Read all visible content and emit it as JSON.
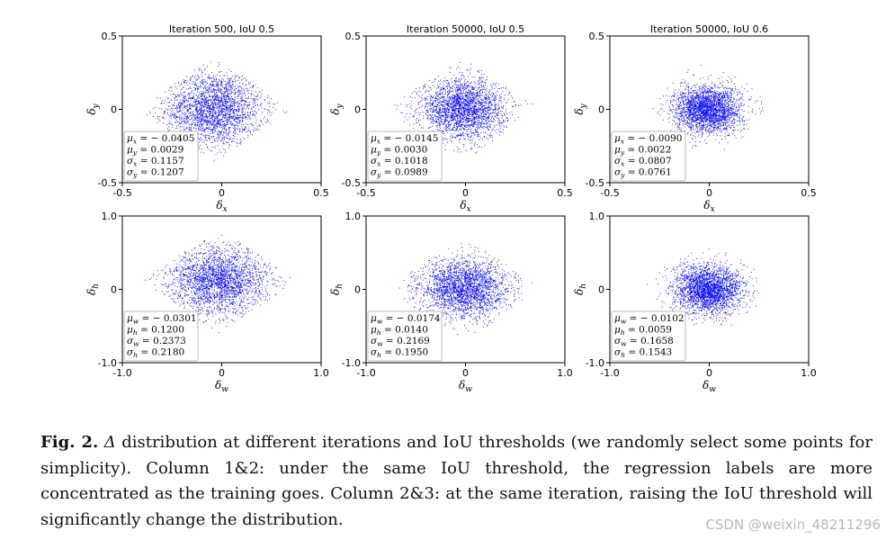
{
  "chart_data": [
    {
      "type": "scatter",
      "title": "Iteration 500, IoU 0.5",
      "xlabel": "δx",
      "ylabel": "δy",
      "xlim": [
        -0.5,
        0.5
      ],
      "ylim": [
        -0.5,
        0.5
      ],
      "xticks": [
        "-0.5",
        "0",
        "0.5"
      ],
      "yticks": [
        "0.5",
        "0",
        "-0.5"
      ],
      "color": "#0000ff",
      "mu": [
        -0.0405,
        0.0029
      ],
      "sigma": [
        0.1157,
        0.1207
      ],
      "stats": [
        "μx = − 0.0405",
        "μy = 0.0029",
        "σx = 0.1157",
        "σy = 0.1207"
      ]
    },
    {
      "type": "scatter",
      "title": "Iteration 50000, IoU 0.5",
      "xlabel": "δx",
      "ylabel": "δy",
      "xlim": [
        -0.5,
        0.5
      ],
      "ylim": [
        -0.5,
        0.5
      ],
      "xticks": [
        "-0.5",
        "0",
        "0.5"
      ],
      "yticks": [
        "0.5",
        "0",
        "-0.5"
      ],
      "color": "#0000ff",
      "mu": [
        -0.0145,
        0.003
      ],
      "sigma": [
        0.1018,
        0.0989
      ],
      "stats": [
        "μx = − 0.0145",
        "μy = 0.0030",
        "σx = 0.1018",
        "σy = 0.0989"
      ]
    },
    {
      "type": "scatter",
      "title": "Iteration 50000, IoU 0.6",
      "xlabel": "δx",
      "ylabel": "δy",
      "xlim": [
        -0.5,
        0.5
      ],
      "ylim": [
        -0.5,
        0.5
      ],
      "xticks": [
        "-0.5",
        "0",
        "0.5"
      ],
      "yticks": [
        "0.5",
        "0",
        "-0.5"
      ],
      "color": "#0000ff",
      "mu": [
        -0.009,
        0.0022
      ],
      "sigma": [
        0.0807,
        0.0761
      ],
      "stats": [
        "μx = − 0.0090",
        "μy = 0.0022",
        "σx = 0.0807",
        "σy = 0.0761"
      ]
    },
    {
      "type": "scatter",
      "title": "",
      "xlabel": "δw",
      "ylabel": "δh",
      "xlim": [
        -1.0,
        1.0
      ],
      "ylim": [
        -1.0,
        1.0
      ],
      "xticks": [
        "-1.0",
        "0",
        "1.0"
      ],
      "yticks": [
        "1.0",
        "0",
        "-1.0"
      ],
      "color": "#0000ff",
      "mu": [
        -0.0301,
        0.12
      ],
      "sigma": [
        0.2373,
        0.218
      ],
      "stats": [
        "μw = − 0.0301",
        "μh = 0.1200",
        "σw = 0.2373",
        "σh = 0.2180"
      ]
    },
    {
      "type": "scatter",
      "title": "",
      "xlabel": "δw",
      "ylabel": "δh",
      "xlim": [
        -1.0,
        1.0
      ],
      "ylim": [
        -1.0,
        1.0
      ],
      "xticks": [
        "-1.0",
        "0",
        "1.0"
      ],
      "yticks": [
        "1.0",
        "0",
        "-1.0"
      ],
      "color": "#0000ff",
      "mu": [
        -0.0174,
        0.014
      ],
      "sigma": [
        0.2169,
        0.195
      ],
      "stats": [
        "μw = − 0.0174",
        "μh = 0.0140",
        "σw = 0.2169",
        "σh = 0.1950"
      ]
    },
    {
      "type": "scatter",
      "title": "",
      "xlabel": "δw",
      "ylabel": "δh",
      "xlim": [
        -1.0,
        1.0
      ],
      "ylim": [
        -1.0,
        1.0
      ],
      "xticks": [
        "-1.0",
        "0",
        "1.0"
      ],
      "yticks": [
        "1.0",
        "0",
        "-1.0"
      ],
      "color": "#0000ff",
      "mu": [
        -0.0102,
        0.0059
      ],
      "sigma": [
        0.1658,
        0.1543
      ],
      "stats": [
        "μw = − 0.0102",
        "μh = 0.0059",
        "σw = 0.1658",
        "σh = 0.1543"
      ]
    }
  ],
  "caption": {
    "label": "Fig. 2.",
    "symbol": "Δ",
    "text": "distribution at different iterations and IoU thresholds (we randomly select some points for simplicity). Column 1&2: under the same IoU threshold, the regression labels are more concentrated as the training goes. Column 2&3: at the same iteration, raising the IoU threshold will significantly change the distribution."
  },
  "watermark": "CSDN @weixin_48211296"
}
